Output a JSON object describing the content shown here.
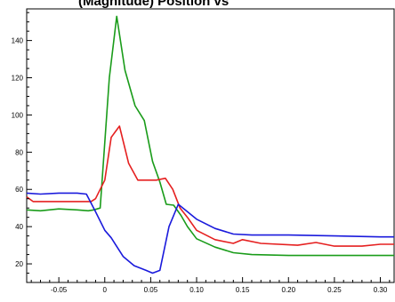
{
  "chart_data": {
    "type": "line",
    "title": "(Magnitude) Position vs",
    "xlabel": "",
    "ylabel": "",
    "xlim": [
      -0.085,
      0.315
    ],
    "ylim": [
      10,
      157
    ],
    "grid": false,
    "legend": "none",
    "x_ticks": [
      -0.05,
      0,
      0.05,
      0.1,
      0.15,
      0.2,
      0.25,
      0.3
    ],
    "x_tick_labels": [
      "-0.05",
      "0",
      "0.05",
      "0.10",
      "0.15",
      "0.20",
      "0.25",
      "0.30"
    ],
    "y_ticks": [
      20,
      40,
      60,
      80,
      100,
      120,
      140
    ],
    "y_tick_labels": [
      "20",
      "40",
      "60",
      "80",
      "100",
      "120",
      "140"
    ],
    "series": [
      {
        "color": "#1a9c1a",
        "x": [
          -0.085,
          -0.07,
          -0.05,
          -0.03,
          -0.018,
          -0.012,
          -0.005,
          0.005,
          0.013,
          0.022,
          0.033,
          0.043,
          0.052,
          0.06,
          0.067,
          0.075,
          0.083,
          0.09,
          0.1,
          0.12,
          0.14,
          0.16,
          0.2,
          0.25,
          0.3,
          0.315
        ],
        "y": [
          49,
          48.5,
          49.5,
          49,
          48.5,
          49,
          50,
          120,
          153,
          124,
          105,
          97,
          75,
          64,
          52,
          51.5,
          46,
          40,
          33.5,
          29,
          26,
          25,
          24.5,
          24.5,
          24.5,
          24.5
        ]
      },
      {
        "color": "#e52020",
        "x": [
          -0.085,
          -0.078,
          -0.065,
          -0.05,
          -0.03,
          -0.015,
          -0.01,
          -0.005,
          0.0,
          0.007,
          0.016,
          0.026,
          0.036,
          0.046,
          0.056,
          0.066,
          0.074,
          0.082,
          0.09,
          0.1,
          0.12,
          0.14,
          0.15,
          0.17,
          0.21,
          0.23,
          0.25,
          0.28,
          0.3,
          0.315
        ],
        "y": [
          56,
          53.5,
          53.5,
          53.5,
          53.5,
          53.5,
          55,
          60,
          65,
          88,
          94,
          74,
          65,
          65,
          65,
          66,
          60,
          50,
          45,
          38,
          33,
          31,
          33,
          31,
          30,
          31.5,
          29.5,
          29.5,
          30.5,
          30.5
        ]
      },
      {
        "color": "#1a1adc",
        "x": [
          -0.085,
          -0.07,
          -0.05,
          -0.03,
          -0.02,
          -0.01,
          0.0,
          0.007,
          0.02,
          0.032,
          0.045,
          0.052,
          0.06,
          0.07,
          0.08,
          0.09,
          0.1,
          0.12,
          0.14,
          0.16,
          0.2,
          0.25,
          0.3,
          0.315
        ],
        "y": [
          58,
          57.5,
          58,
          58,
          57.5,
          48,
          38,
          34,
          24,
          19,
          16.5,
          15,
          16.5,
          40,
          52,
          48,
          44,
          39,
          36,
          35.5,
          35.5,
          35,
          34.5,
          34.5
        ]
      }
    ]
  }
}
